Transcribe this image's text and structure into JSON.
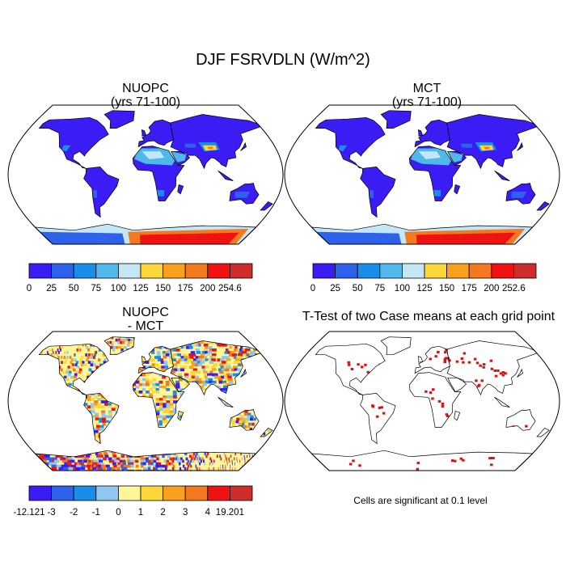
{
  "figure": {
    "title": "DJF FSRVDLN (W/m^2)",
    "note": "Cells are significant at 0.1 level"
  },
  "panels": [
    {
      "title1": "NUOPC",
      "title2": "(yrs 71-100)"
    },
    {
      "title1": "MCT",
      "title2": "(yrs 71-100)"
    },
    {
      "title1": "NUOPC",
      "title2": "- MCT"
    },
    {
      "title1": "T-Test of two Case means at each grid point",
      "title2": ""
    }
  ],
  "chart_data": [
    {
      "type": "heatmap",
      "title": "NUOPC (yrs 71-100)",
      "projection": "robinson",
      "colorbar": {
        "labels": [
          "0",
          "25",
          "50",
          "75",
          "100",
          "125",
          "150",
          "175",
          "200",
          "254.6"
        ],
        "colors": [
          "#3b1cf5",
          "#2f62ea",
          "#1a8de8",
          "#4fb9ec",
          "#c5e6f5",
          "#fcd73a",
          "#f9a11f",
          "#f4781d",
          "#ee1212",
          "#cf2c2c"
        ]
      }
    },
    {
      "type": "heatmap",
      "title": "MCT (yrs 71-100)",
      "projection": "robinson",
      "colorbar": {
        "labels": [
          "0",
          "25",
          "50",
          "75",
          "100",
          "125",
          "150",
          "175",
          "200",
          "252.6"
        ],
        "colors": [
          "#3b1cf5",
          "#2f62ea",
          "#1a8de8",
          "#4fb9ec",
          "#c5e6f5",
          "#fcd73a",
          "#f9a11f",
          "#f4781d",
          "#ee1212",
          "#cf2c2c"
        ]
      }
    },
    {
      "type": "heatmap",
      "title": "NUOPC - MCT",
      "projection": "robinson",
      "colorbar": {
        "labels": [
          "-12.121",
          "-3",
          "-2",
          "-1",
          "0",
          "1",
          "2",
          "3",
          "4",
          "19.201"
        ],
        "colors": [
          "#3b1cf5",
          "#2f62ea",
          "#1a8de8",
          "#8fc8ee",
          "#fff59a",
          "#fcd73a",
          "#f9a11f",
          "#f4781d",
          "#ee1212",
          "#cf2c2c"
        ]
      }
    },
    {
      "type": "heatmap",
      "title": "T-Test of two Case means at each grid point",
      "projection": "robinson",
      "significant_color": "#e01010"
    }
  ]
}
